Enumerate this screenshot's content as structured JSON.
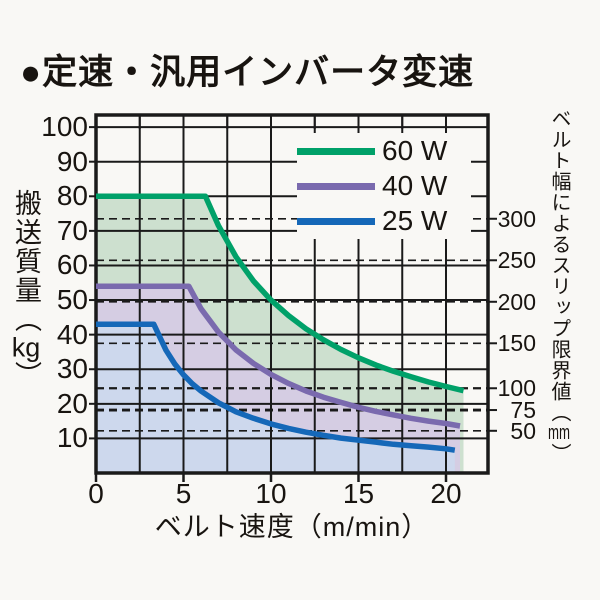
{
  "title": "●定速・汎用インバータ変速",
  "chart_data": {
    "type": "area",
    "title": "定速・汎用インバータ変速",
    "xlabel": "ベルト速度（m/min）",
    "x_axis": {
      "label_full": "ベルト速度（m/min）",
      "ticks": [
        0,
        5,
        10,
        15,
        20
      ],
      "minor_grid_step": 2.5,
      "xlim": [
        0,
        22.4
      ]
    },
    "left_axis": {
      "label": "搬送質量",
      "paren_open": "（",
      "unit": "kg",
      "paren_close": "）",
      "ticks": [
        100,
        90,
        80,
        70,
        60,
        50,
        40,
        30,
        20,
        10
      ],
      "ylim": [
        0,
        103.5
      ]
    },
    "right_axis": {
      "label": "ベルト幅によるスリップ限界値",
      "paren_open": "（",
      "unit": "mm",
      "paren_close": "）",
      "tick_values_mm": [
        300,
        250,
        200,
        150,
        100,
        75,
        50
      ],
      "tick_positions_kg": [
        73.5,
        61.5,
        49.5,
        37.5,
        24.5,
        18.2,
        12.2
      ],
      "dash_line_widths": [
        1.6,
        1.6,
        1.6,
        1.6,
        2.2,
        2.8,
        1.6
      ]
    },
    "grid": "solid black major grid on; dashed slip-limit lines",
    "legend": {
      "position": "top-right inside plot",
      "entries": [
        {
          "label": "60 W",
          "color": "#00a169"
        },
        {
          "label": "40 W",
          "color": "#7a6aae"
        },
        {
          "label": "25 W",
          "color": "#1568b8"
        }
      ]
    },
    "series": [
      {
        "name": "60 W",
        "color": "#00a169",
        "fill": "#cde0cf",
        "points": [
          [
            0,
            80
          ],
          [
            6.25,
            80
          ],
          [
            7,
            71.5
          ],
          [
            8,
            62.5
          ],
          [
            9,
            55.5
          ],
          [
            10,
            50
          ],
          [
            11,
            45.5
          ],
          [
            12,
            41.7
          ],
          [
            13,
            38.5
          ],
          [
            14,
            35.7
          ],
          [
            15,
            33.3
          ],
          [
            16,
            31.2
          ],
          [
            17,
            29.4
          ],
          [
            18,
            27.8
          ],
          [
            19,
            26.3
          ],
          [
            20,
            25
          ],
          [
            21,
            23.8
          ]
        ]
      },
      {
        "name": "40 W",
        "color": "#7a6aae",
        "fill": "#d5cde3",
        "points": [
          [
            0,
            54
          ],
          [
            5.3,
            54
          ],
          [
            6,
            47.5
          ],
          [
            7,
            40.7
          ],
          [
            8,
            35.6
          ],
          [
            9,
            31.7
          ],
          [
            10,
            28.5
          ],
          [
            11,
            25.9
          ],
          [
            12,
            23.7
          ],
          [
            13,
            21.9
          ],
          [
            14,
            20.4
          ],
          [
            15,
            19
          ],
          [
            16,
            17.8
          ],
          [
            17,
            16.8
          ],
          [
            18,
            15.8
          ],
          [
            19,
            15
          ],
          [
            20,
            14.3
          ],
          [
            20.8,
            13.6
          ]
        ]
      },
      {
        "name": "25 W",
        "color": "#1568b8",
        "fill": "#cdd8ed",
        "points": [
          [
            0,
            43
          ],
          [
            3.3,
            43
          ],
          [
            4,
            35.5
          ],
          [
            4.5,
            31.5
          ],
          [
            5,
            28.4
          ],
          [
            5.5,
            25.8
          ],
          [
            6,
            23.7
          ],
          [
            7,
            20.3
          ],
          [
            8,
            17.7
          ],
          [
            9,
            15.8
          ],
          [
            10,
            14.2
          ],
          [
            11,
            12.9
          ],
          [
            12,
            11.8
          ],
          [
            13,
            10.9
          ],
          [
            14,
            10.1
          ],
          [
            15,
            9.5
          ],
          [
            16,
            8.9
          ],
          [
            17,
            8.3
          ],
          [
            18,
            7.9
          ],
          [
            19,
            7.5
          ],
          [
            20,
            7.0
          ],
          [
            20.5,
            6.6
          ]
        ]
      }
    ]
  }
}
